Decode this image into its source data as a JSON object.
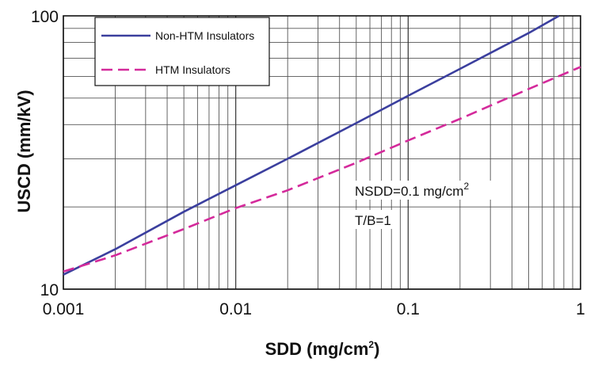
{
  "chart_data": {
    "type": "line",
    "xscale": "log",
    "yscale": "log",
    "xlim": [
      0.001,
      1
    ],
    "ylim": [
      10,
      100
    ],
    "grid": true,
    "legend_position": "top-left",
    "xlabel_main": "SDD (mg/cm",
    "xlabel_sup": "2",
    "xlabel_end": ")",
    "ylabel": "USCD (mm/kV)",
    "x_tick_labels": [
      "0.001",
      "0.01",
      "0.1",
      "1"
    ],
    "y_tick_labels": [
      "10",
      "100"
    ],
    "series": [
      {
        "name": "Non-HTM Insulators",
        "color": "#3b3f9e",
        "dash": "solid",
        "x": [
          0.001,
          0.002,
          0.005,
          0.01,
          0.02,
          0.05,
          0.1,
          0.2,
          0.5,
          0.75
        ],
        "y": [
          11.3,
          14.0,
          19.2,
          24.0,
          30.0,
          40.5,
          51.0,
          64.0,
          86.5,
          100.0
        ]
      },
      {
        "name": "HTM Insulators",
        "color": "#d42a9b",
        "dash": "dashed",
        "x": [
          0.001,
          0.002,
          0.005,
          0.01,
          0.02,
          0.05,
          0.1,
          0.2,
          0.5,
          1
        ],
        "y": [
          11.6,
          13.3,
          16.6,
          19.8,
          23.0,
          29.0,
          35.0,
          42.0,
          54.0,
          65.0
        ]
      }
    ],
    "annotations": [
      {
        "text_main": "NSDD=0.1 mg/cm",
        "text_sup": "2"
      },
      {
        "text_main": "T/B=1",
        "text_sup": ""
      }
    ]
  }
}
